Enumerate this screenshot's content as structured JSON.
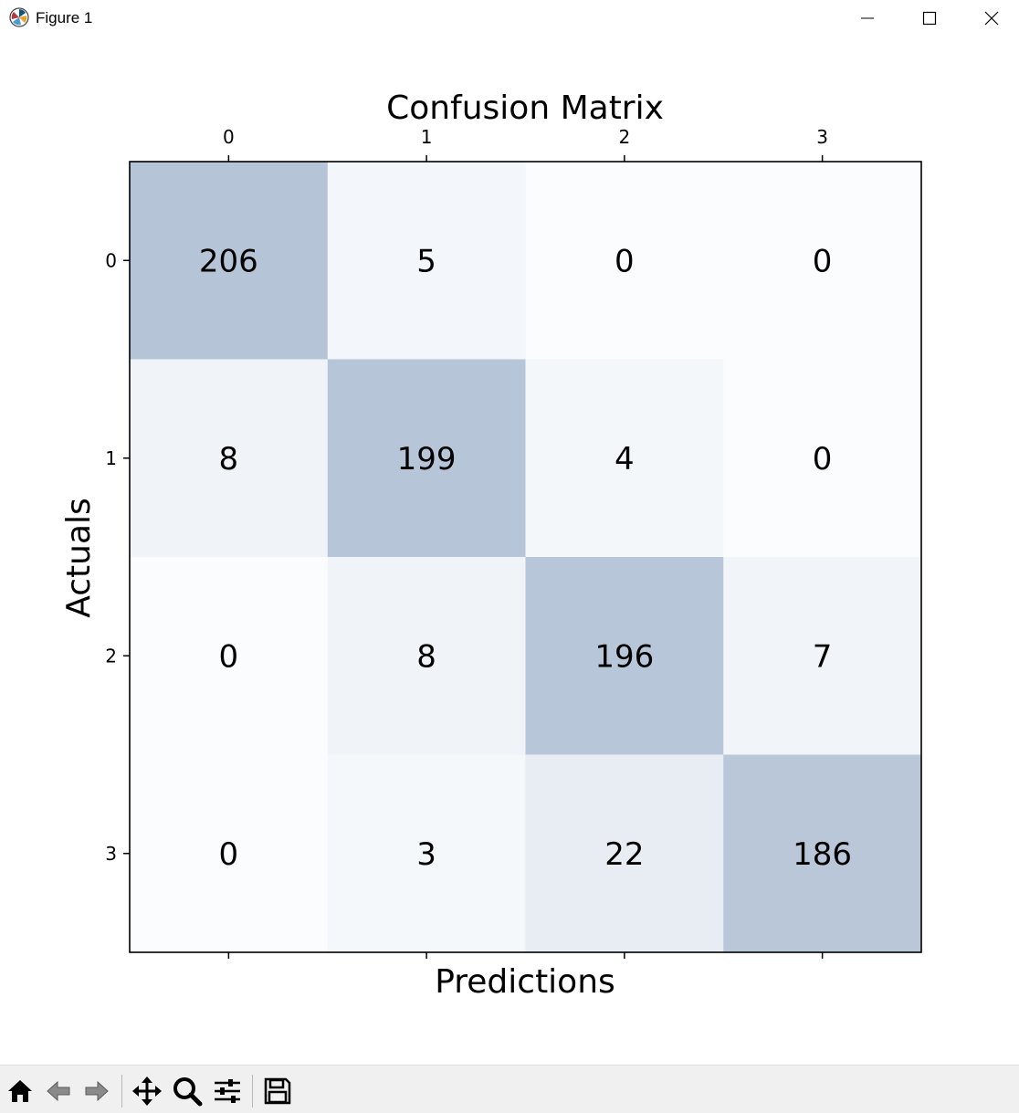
{
  "window": {
    "title": "Figure 1",
    "icon": "matplotlib-icon",
    "controls": [
      "minimize-icon",
      "maximize-icon",
      "close-icon"
    ]
  },
  "toolbar": {
    "buttons": [
      {
        "name": "home-button",
        "icon": "home-icon"
      },
      {
        "name": "back-button",
        "icon": "back-arrow-icon"
      },
      {
        "name": "forward-button",
        "icon": "forward-arrow-icon"
      },
      {
        "name": "pan-button",
        "icon": "move-icon"
      },
      {
        "name": "zoom-button",
        "icon": "magnifier-icon"
      },
      {
        "name": "subplots-button",
        "icon": "sliders-icon"
      },
      {
        "name": "save-button",
        "icon": "floppy-icon"
      }
    ]
  },
  "chart_data": {
    "type": "heatmap",
    "title": "Confusion Matrix",
    "xlabel": "Predictions",
    "ylabel": "Actuals",
    "x_ticks_top": [
      "0",
      "1",
      "2",
      "3"
    ],
    "y_ticks": [
      "0",
      "1",
      "2",
      "3"
    ],
    "matrix": [
      [
        206,
        5,
        0,
        0
      ],
      [
        8,
        199,
        4,
        0
      ],
      [
        0,
        8,
        196,
        7
      ],
      [
        0,
        3,
        22,
        186
      ]
    ],
    "colormap": "Blues",
    "alpha": 0.3,
    "colors": {
      "high": "#b5c4d7",
      "low": "#fafcfe",
      "text": "#000000",
      "frame": "#000000"
    }
  }
}
